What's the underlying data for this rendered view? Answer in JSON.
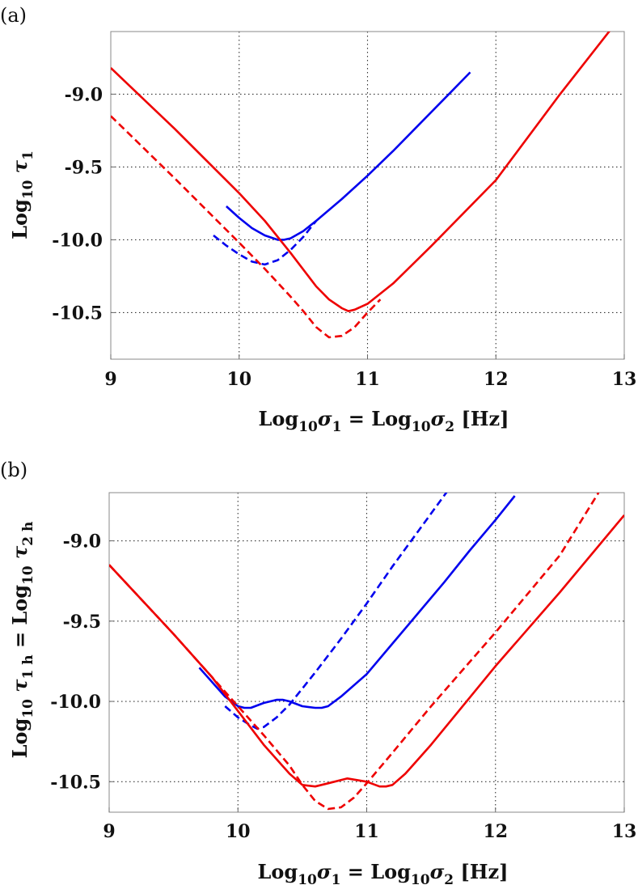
{
  "chart_data": [
    {
      "panel_label": "(a)",
      "type": "line",
      "xlabel": {
        "main": "Log",
        "sub1": "10",
        "sym1": "σ",
        "idx1": "1",
        "eq": " = Log",
        "sub2": "10",
        "sym2": "σ",
        "idx2": "2",
        "unit": " [Hz]"
      },
      "ylabel": {
        "main": "Log",
        "sub1": "10",
        "sym1": " τ",
        "idx1": "1"
      },
      "xlim": [
        9,
        13
      ],
      "ylim": [
        -10.82,
        -8.57
      ],
      "xticks": [
        "9",
        "10",
        "11",
        "12",
        "13"
      ],
      "yticks": [
        "-9.0",
        "-9.5",
        "-10.0",
        "-10.5"
      ],
      "ytick_values": [
        -9.0,
        -9.5,
        -10.0,
        -10.5
      ],
      "xgrid": [
        10,
        11,
        12
      ],
      "ygrid": [
        -9.0,
        -9.5,
        -10.0,
        -10.5
      ],
      "grid": true,
      "series": [
        {
          "color": "#0000ee",
          "style": "solid",
          "x": [
            9.9,
            10.0,
            10.1,
            10.2,
            10.3,
            10.35,
            10.4,
            10.5,
            10.6,
            10.8,
            11.0,
            11.2,
            11.4,
            11.6,
            11.8
          ],
          "y": [
            -9.77,
            -9.85,
            -9.92,
            -9.97,
            -10.0,
            -10.0,
            -9.99,
            -9.94,
            -9.87,
            -9.72,
            -9.56,
            -9.39,
            -9.21,
            -9.03,
            -8.85
          ]
        },
        {
          "color": "#0000ee",
          "style": "dashed",
          "x": [
            9.8,
            9.9,
            10.0,
            10.1,
            10.2,
            10.3,
            10.4,
            10.5,
            10.6
          ],
          "y": [
            -9.97,
            -10.04,
            -10.1,
            -10.15,
            -10.17,
            -10.14,
            -10.07,
            -9.98,
            -9.87
          ]
        },
        {
          "color": "#ee0000",
          "style": "solid",
          "x": [
            9.0,
            9.5,
            10.0,
            10.2,
            10.4,
            10.6,
            10.7,
            10.8,
            10.85,
            10.9,
            11.0,
            11.2,
            11.5,
            12.0,
            12.5,
            12.9
          ],
          "y": [
            -8.82,
            -9.24,
            -9.68,
            -9.87,
            -10.09,
            -10.32,
            -10.41,
            -10.47,
            -10.49,
            -10.48,
            -10.44,
            -10.3,
            -10.04,
            -9.59,
            -9.0,
            -8.55
          ]
        },
        {
          "color": "#ee0000",
          "style": "dashed",
          "x": [
            9.0,
            9.5,
            10.0,
            10.2,
            10.4,
            10.5,
            10.6,
            10.7,
            10.8,
            10.9,
            11.0,
            11.1
          ],
          "y": [
            -9.15,
            -9.58,
            -10.02,
            -10.2,
            -10.39,
            -10.49,
            -10.6,
            -10.67,
            -10.66,
            -10.6,
            -10.5,
            -10.41
          ]
        }
      ]
    },
    {
      "panel_label": "(b)",
      "type": "line",
      "xlabel": {
        "main": "Log",
        "sub1": "10",
        "sym1": "σ",
        "idx1": "1",
        "eq": " = Log",
        "sub2": "10",
        "sym2": "σ",
        "idx2": "2",
        "unit": " [Hz]"
      },
      "ylabel": {
        "main": "Log",
        "sub1": "10",
        "sym1": " τ",
        "idx1": "1 h",
        "eq": " = Log",
        "sub2": "10",
        "sym2": " τ",
        "idx2": "2 h"
      },
      "xlim": [
        9,
        13
      ],
      "ylim": [
        -10.69,
        -8.7
      ],
      "xticks": [
        "9",
        "10",
        "11",
        "12",
        "13"
      ],
      "yticks": [
        "-9.0",
        "-9.5",
        "-10.0",
        "-10.5"
      ],
      "ytick_values": [
        -9.0,
        -9.5,
        -10.0,
        -10.5
      ],
      "xgrid": [
        10,
        11,
        12
      ],
      "ygrid": [
        -9.0,
        -9.5,
        -10.0,
        -10.5
      ],
      "grid": true,
      "series": [
        {
          "color": "#0000ee",
          "style": "solid",
          "x": [
            9.7,
            9.8,
            9.9,
            10.0,
            10.05,
            10.1,
            10.2,
            10.3,
            10.35,
            10.4,
            10.5,
            10.6,
            10.65,
            10.7,
            10.8,
            11.0,
            11.2,
            11.4,
            11.6,
            11.8,
            12.0,
            12.15
          ],
          "y": [
            -9.79,
            -9.88,
            -9.97,
            -10.03,
            -10.04,
            -10.04,
            -10.01,
            -9.99,
            -9.99,
            -10.0,
            -10.03,
            -10.04,
            -10.04,
            -10.03,
            -9.97,
            -9.83,
            -9.64,
            -9.45,
            -9.26,
            -9.06,
            -8.87,
            -8.72
          ]
        },
        {
          "color": "#0000ee",
          "style": "dashed",
          "x": [
            9.9,
            10.0,
            10.1,
            10.15,
            10.2,
            10.3,
            10.4,
            10.6,
            10.8,
            11.0,
            11.2,
            11.4,
            11.6,
            11.8
          ],
          "y": [
            -10.03,
            -10.1,
            -10.15,
            -10.17,
            -10.16,
            -10.1,
            -10.02,
            -9.82,
            -9.61,
            -9.39,
            -9.16,
            -8.94,
            -8.72,
            -8.5
          ]
        },
        {
          "color": "#ee0000",
          "style": "solid",
          "x": [
            9.0,
            9.5,
            9.8,
            10.0,
            10.2,
            10.4,
            10.5,
            10.6,
            10.7,
            10.85,
            11.0,
            11.1,
            11.15,
            11.2,
            11.3,
            11.5,
            12.0,
            12.5,
            13.0
          ],
          "y": [
            -9.15,
            -9.58,
            -9.85,
            -10.06,
            -10.27,
            -10.45,
            -10.52,
            -10.53,
            -10.51,
            -10.48,
            -10.5,
            -10.53,
            -10.53,
            -10.52,
            -10.45,
            -10.27,
            -9.78,
            -9.32,
            -8.84
          ]
        },
        {
          "color": "#ee0000",
          "style": "dashed",
          "x": [
            9.0,
            9.5,
            10.0,
            10.2,
            10.4,
            10.5,
            10.6,
            10.7,
            10.8,
            10.9,
            11.0,
            11.2,
            11.5,
            12.0,
            12.5,
            12.8
          ],
          "y": [
            -9.15,
            -9.58,
            -10.03,
            -10.21,
            -10.4,
            -10.52,
            -10.62,
            -10.67,
            -10.66,
            -10.6,
            -10.51,
            -10.32,
            -10.03,
            -9.57,
            -9.09,
            -8.7
          ]
        }
      ]
    }
  ]
}
